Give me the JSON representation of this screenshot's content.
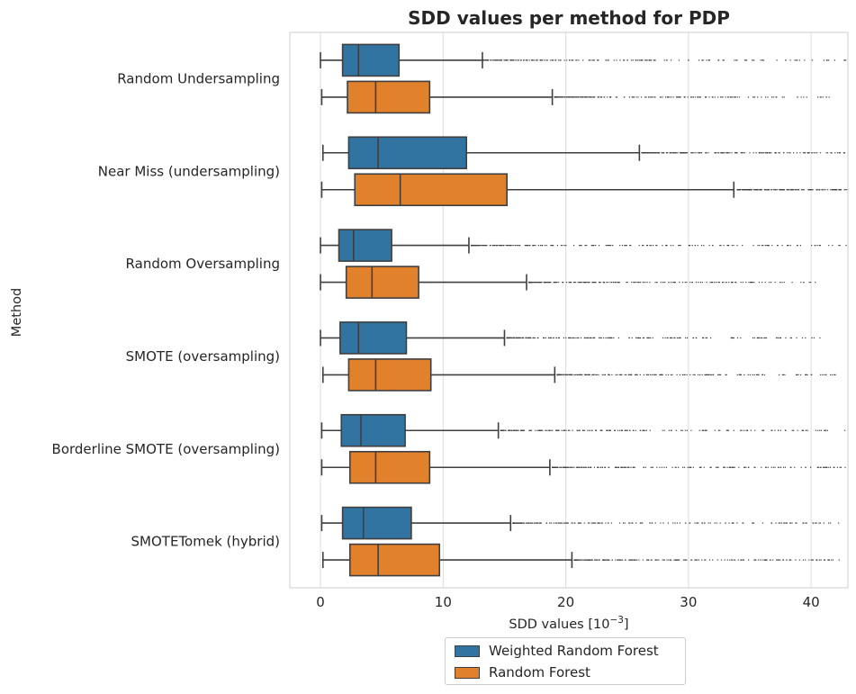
{
  "chart_data": {
    "type": "boxplot",
    "orientation": "horizontal",
    "title": "SDD values per method for PDP",
    "xlabel_main": "SDD values [10",
    "xlabel_sup": "−3",
    "xlabel_end": "]",
    "ylabel": "Method",
    "xlim": [
      -2.5,
      43
    ],
    "xticks": [
      0,
      10,
      20,
      30,
      40
    ],
    "xtick_labels": [
      "0",
      "10",
      "20",
      "30",
      "40"
    ],
    "grid": "x-major",
    "legend_position": "below",
    "categories": [
      "Random Undersampling",
      "Near Miss (undersampling)",
      "Random Oversampling",
      "SMOTE (oversampling)",
      "Borderline SMOTE (oversampling)",
      "SMOTETomek (hybrid)"
    ],
    "series": [
      {
        "name": "Weighted Random Forest",
        "color": "#3274a1",
        "boxes": [
          {
            "whislo": 0.0,
            "q1": 1.8,
            "med": 3.1,
            "q3": 6.4,
            "whishi": 13.2,
            "fliers_from": 13.3,
            "fliers_to": 43.0
          },
          {
            "whislo": 0.2,
            "q1": 2.3,
            "med": 4.7,
            "q3": 11.9,
            "whishi": 26.0,
            "fliers_from": 26.2,
            "fliers_to": 43.0
          },
          {
            "whislo": 0.0,
            "q1": 1.5,
            "med": 2.7,
            "q3": 5.8,
            "whishi": 12.1,
            "fliers_from": 12.3,
            "fliers_to": 43.0
          },
          {
            "whislo": 0.0,
            "q1": 1.6,
            "med": 3.1,
            "q3": 7.0,
            "whishi": 15.0,
            "fliers_from": 15.2,
            "fliers_to": 42.0
          },
          {
            "whislo": 0.1,
            "q1": 1.7,
            "med": 3.3,
            "q3": 6.9,
            "whishi": 14.5,
            "fliers_from": 14.7,
            "fliers_to": 43.0
          },
          {
            "whislo": 0.1,
            "q1": 1.8,
            "med": 3.5,
            "q3": 7.4,
            "whishi": 15.5,
            "fliers_from": 15.7,
            "fliers_to": 42.5
          }
        ]
      },
      {
        "name": "Random Forest",
        "color": "#e1812c",
        "boxes": [
          {
            "whislo": 0.1,
            "q1": 2.2,
            "med": 4.5,
            "q3": 8.9,
            "whishi": 18.9,
            "fliers_from": 19.1,
            "fliers_to": 41.5
          },
          {
            "whislo": 0.1,
            "q1": 2.8,
            "med": 6.5,
            "q3": 15.2,
            "whishi": 33.7,
            "fliers_from": 34.0,
            "fliers_to": 43.0
          },
          {
            "whislo": 0.0,
            "q1": 2.1,
            "med": 4.2,
            "q3": 8.0,
            "whishi": 16.8,
            "fliers_from": 17.0,
            "fliers_to": 40.5
          },
          {
            "whislo": 0.2,
            "q1": 2.3,
            "med": 4.5,
            "q3": 9.0,
            "whishi": 19.1,
            "fliers_from": 19.3,
            "fliers_to": 42.0
          },
          {
            "whislo": 0.1,
            "q1": 2.4,
            "med": 4.5,
            "q3": 8.9,
            "whishi": 18.7,
            "fliers_from": 18.9,
            "fliers_to": 43.0
          },
          {
            "whislo": 0.2,
            "q1": 2.4,
            "med": 4.7,
            "q3": 9.7,
            "whishi": 20.5,
            "fliers_from": 20.7,
            "fliers_to": 42.5
          }
        ]
      }
    ]
  }
}
